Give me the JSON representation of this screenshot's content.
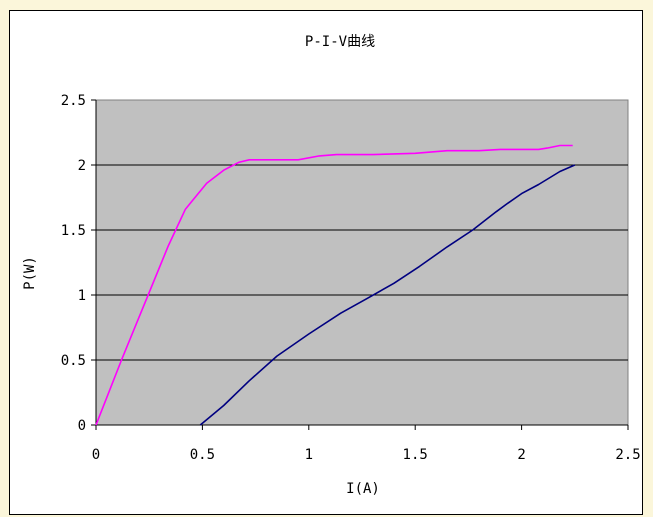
{
  "chart_data": {
    "type": "line",
    "title": "P-I-V曲线",
    "xlabel": "I(A)",
    "ylabel": "P(W)",
    "xlim": [
      0,
      2.5
    ],
    "ylim": [
      0,
      2.5
    ],
    "xticks": [
      "0",
      "0.5",
      "1",
      "1.5",
      "2",
      "2.5"
    ],
    "yticks": [
      "0",
      "0.5",
      "1",
      "1.5",
      "2",
      "2.5"
    ],
    "grid": "horizontal",
    "plot_background": "#c0c0c0",
    "series": [
      {
        "color": "#ff00ff",
        "points": [
          [
            0.0,
            0.0
          ],
          [
            0.12,
            0.5
          ],
          [
            0.25,
            1.02
          ],
          [
            0.34,
            1.38
          ],
          [
            0.42,
            1.66
          ],
          [
            0.45,
            1.72
          ],
          [
            0.52,
            1.86
          ],
          [
            0.6,
            1.96
          ],
          [
            0.67,
            2.02
          ],
          [
            0.72,
            2.04
          ],
          [
            0.8,
            2.04
          ],
          [
            0.95,
            2.04
          ],
          [
            1.05,
            2.07
          ],
          [
            1.13,
            2.08
          ],
          [
            1.3,
            2.08
          ],
          [
            1.5,
            2.09
          ],
          [
            1.65,
            2.11
          ],
          [
            1.8,
            2.11
          ],
          [
            1.9,
            2.12
          ],
          [
            2.08,
            2.12
          ],
          [
            2.12,
            2.13
          ],
          [
            2.18,
            2.15
          ],
          [
            2.24,
            2.15
          ]
        ]
      },
      {
        "color": "#000080",
        "points": [
          [
            0.49,
            0.0
          ],
          [
            0.6,
            0.15
          ],
          [
            0.72,
            0.34
          ],
          [
            0.85,
            0.53
          ],
          [
            1.0,
            0.7
          ],
          [
            1.15,
            0.86
          ],
          [
            1.27,
            0.97
          ],
          [
            1.4,
            1.09
          ],
          [
            1.52,
            1.22
          ],
          [
            1.65,
            1.37
          ],
          [
            1.77,
            1.5
          ],
          [
            1.88,
            1.64
          ],
          [
            1.93,
            1.7
          ],
          [
            2.0,
            1.78
          ],
          [
            2.08,
            1.85
          ],
          [
            2.18,
            1.95
          ],
          [
            2.25,
            2.0
          ]
        ]
      }
    ]
  }
}
